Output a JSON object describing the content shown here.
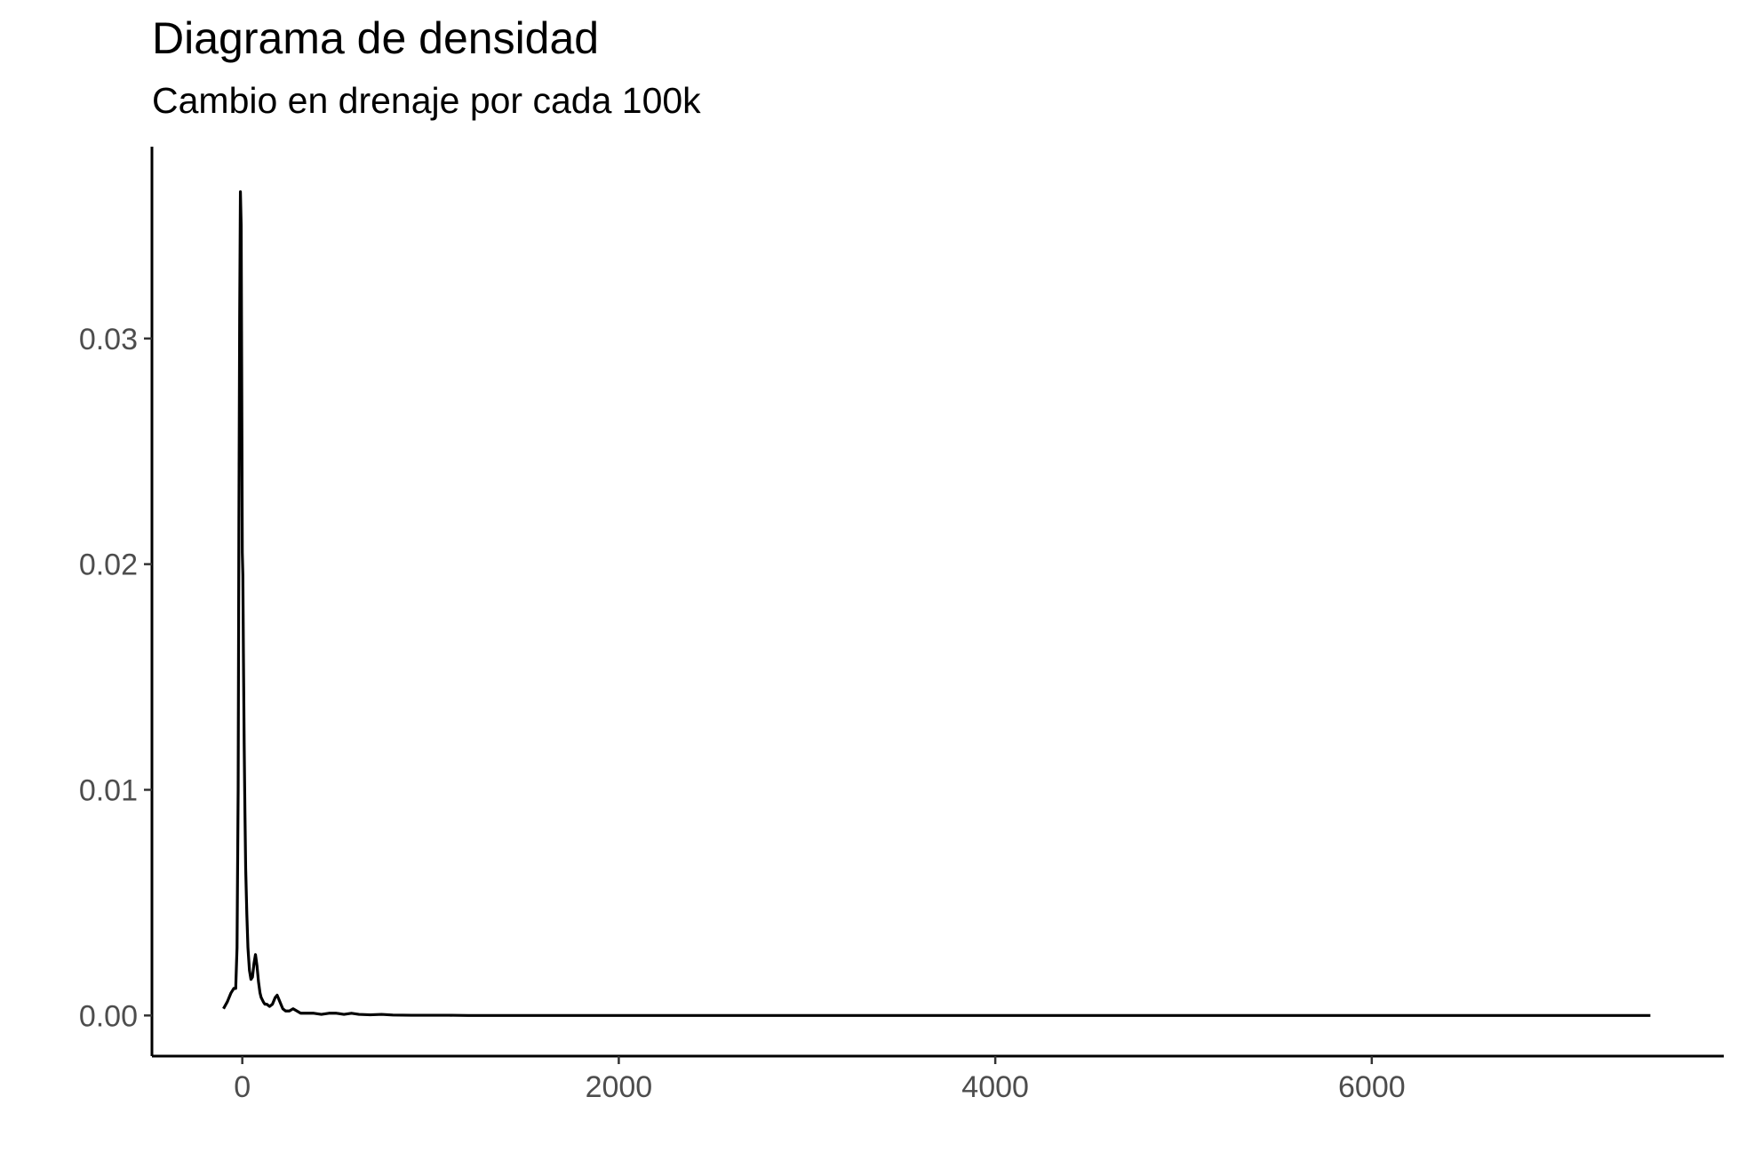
{
  "chart_data": {
    "type": "line",
    "title": "Diagrama de densidad",
    "subtitle": "Cambio en drenaje por cada 100k",
    "xlabel": "",
    "ylabel": "",
    "xlim": [
      -480,
      7870
    ],
    "ylim": [
      -0.0018,
      0.0385
    ],
    "x_ticks": [
      0,
      2000,
      4000,
      6000
    ],
    "x_tick_labels": [
      "0",
      "2000",
      "4000",
      "6000"
    ],
    "y_ticks": [
      0.0,
      0.01,
      0.02,
      0.03
    ],
    "y_tick_labels": [
      "0.00",
      "0.01",
      "0.02",
      "0.03"
    ],
    "grid": false,
    "legend": "none",
    "line_color": "#000000",
    "series": [
      {
        "x": [
          -100,
          -80,
          -60,
          -45,
          -35,
          -28,
          -22,
          -18,
          -14,
          -10,
          -6,
          -3,
          0,
          3,
          6,
          10,
          14,
          18,
          24,
          30,
          38,
          46,
          54,
          62,
          70,
          78,
          86,
          94,
          100,
          106,
          112,
          120,
          130,
          145,
          160,
          175,
          185,
          195,
          205,
          215,
          230,
          250,
          270,
          290,
          310,
          330,
          350,
          380,
          420,
          460,
          500,
          540,
          580,
          620,
          680,
          740,
          800,
          900,
          1000,
          1100,
          1200,
          1400,
          1600,
          2000,
          3000,
          4000,
          5000,
          6000,
          7000,
          7480
        ],
        "y": [
          0.0003,
          0.0006,
          0.001,
          0.0012,
          0.0012,
          0.003,
          0.01,
          0.022,
          0.031,
          0.0365,
          0.035,
          0.028,
          0.0205,
          0.0195,
          0.016,
          0.012,
          0.009,
          0.0065,
          0.0045,
          0.003,
          0.002,
          0.0016,
          0.0017,
          0.0023,
          0.0027,
          0.0022,
          0.0015,
          0.001,
          0.0008,
          0.0007,
          0.0006,
          0.0005,
          0.0005,
          0.0004,
          0.0005,
          0.0008,
          0.0009,
          0.0007,
          0.0005,
          0.0003,
          0.0002,
          0.0002,
          0.0003,
          0.0002,
          0.0001,
          0.0001,
          0.0001,
          0.0001,
          5e-05,
          0.0001,
          0.0001,
          5e-05,
          0.0001,
          5e-05,
          3e-05,
          5e-05,
          2e-05,
          1e-05,
          1e-05,
          1e-05,
          0.0,
          0.0,
          0.0,
          0.0,
          0.0,
          0.0,
          0.0,
          0.0,
          0.0,
          0.0
        ]
      }
    ]
  }
}
